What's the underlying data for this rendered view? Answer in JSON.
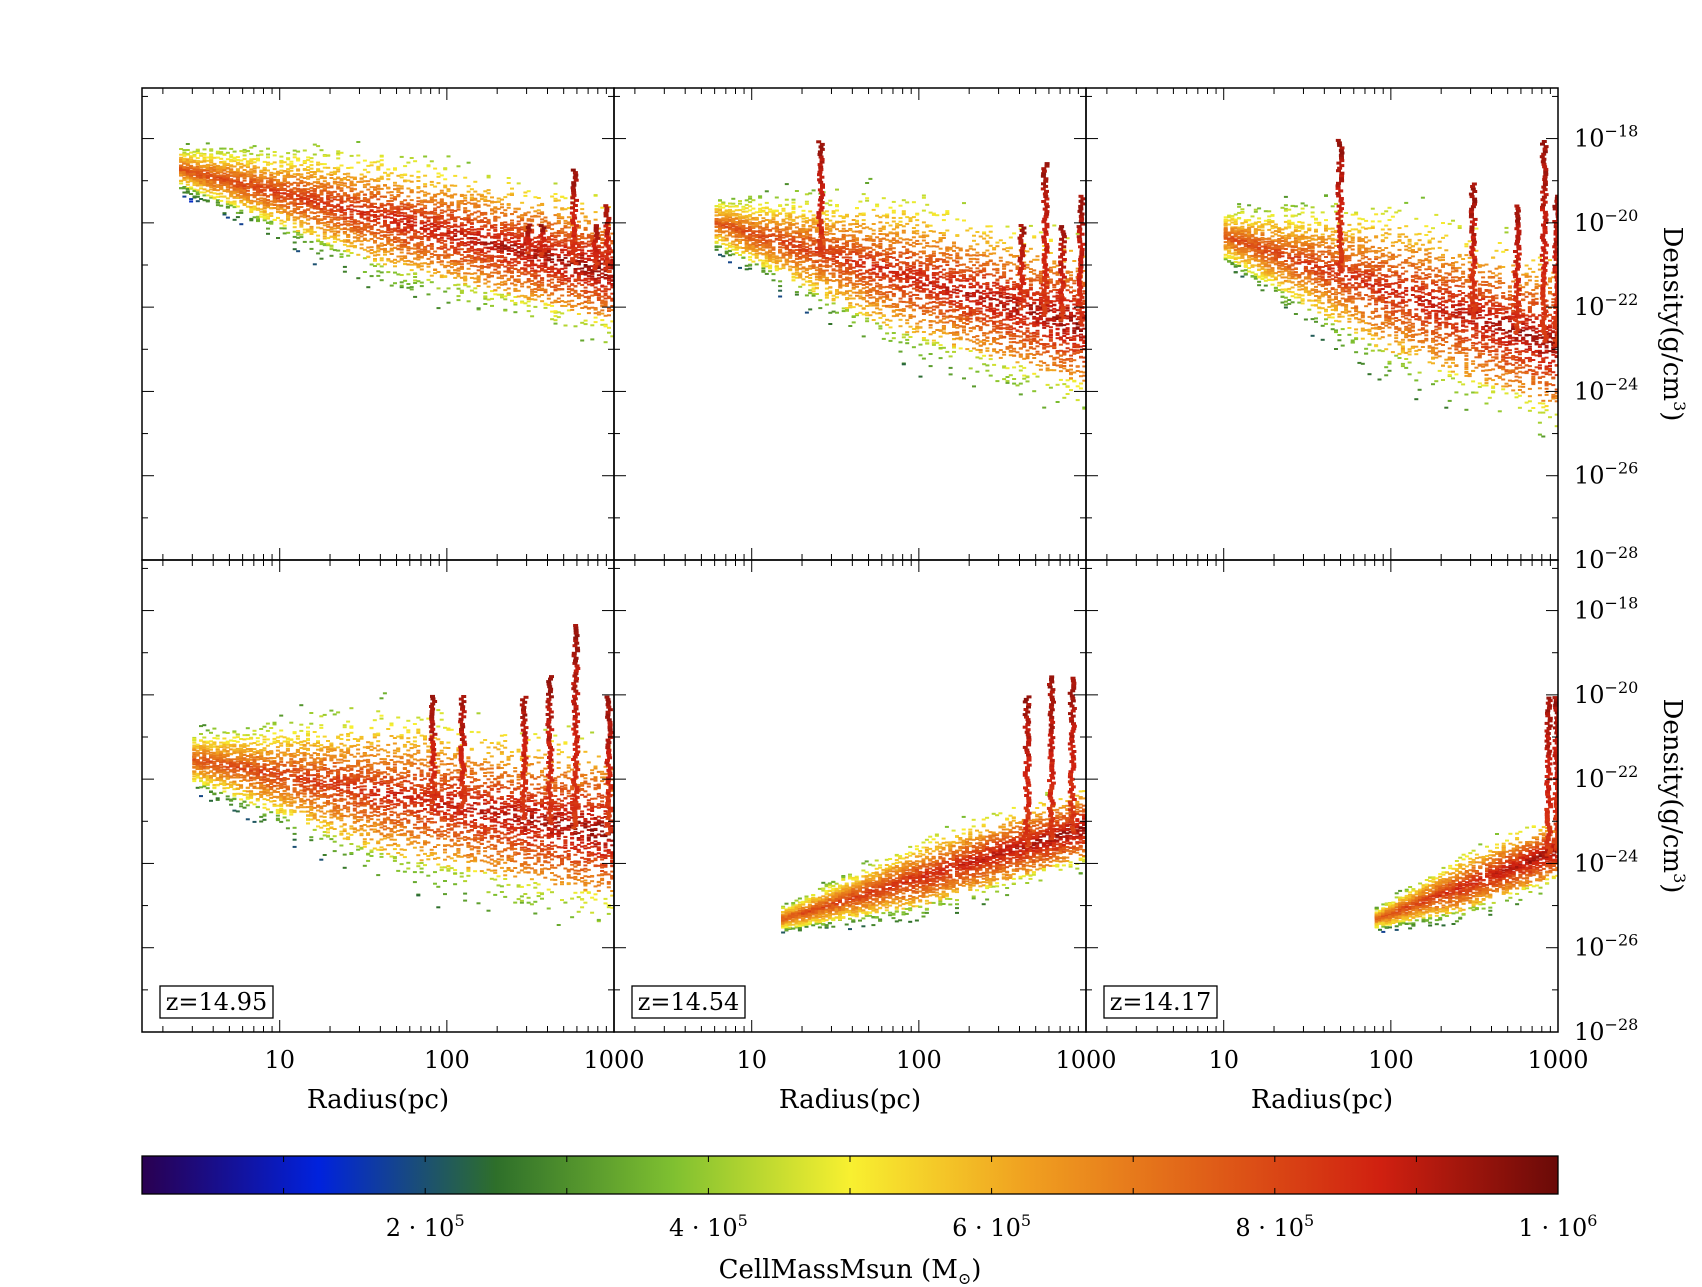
{
  "chart_data": {
    "type": "heatmap",
    "description_type": "phase plot (2D histogram) of gas density versus radius, colored by cell mass",
    "panels": [
      {
        "row": 0,
        "col": 0,
        "label": "",
        "blob": {
          "r0": 2.5,
          "d0": 2e-19,
          "slope": -0.95,
          "spread": 2.0,
          "rmax": 1000
        },
        "spikes": [
          {
            "r": 300,
            "top": 1e-20
          },
          {
            "r": 360,
            "top": 1e-20
          },
          {
            "r": 560,
            "top": 2e-19
          },
          {
            "r": 750,
            "top": 1e-20
          },
          {
            "r": 880,
            "top": 3e-20
          }
        ]
      },
      {
        "row": 0,
        "col": 1,
        "label": "",
        "blob": {
          "r0": 6.0,
          "d0": 1e-20,
          "slope": -1.1,
          "spread": 2.4,
          "rmax": 1000
        },
        "spikes": [
          {
            "r": 25,
            "top": 1e-18
          },
          {
            "r": 400,
            "top": 1e-20
          },
          {
            "r": 550,
            "top": 3e-19
          },
          {
            "r": 700,
            "top": 1e-20
          },
          {
            "r": 900,
            "top": 5e-20
          }
        ]
      },
      {
        "row": 0,
        "col": 2,
        "label": "",
        "blob": {
          "r0": 10,
          "d0": 5e-21,
          "slope": -1.3,
          "spread": 2.6,
          "rmax": 1000
        },
        "spikes": [
          {
            "r": 48,
            "top": 1e-18
          },
          {
            "r": 300,
            "top": 1e-19
          },
          {
            "r": 550,
            "top": 3e-20
          },
          {
            "r": 800,
            "top": 1e-18
          },
          {
            "r": 950,
            "top": 5e-20
          }
        ]
      },
      {
        "row": 1,
        "col": 0,
        "label": "z=14.95",
        "blob": {
          "r0": 3.0,
          "d0": 3e-22,
          "slope": -0.7,
          "spread": 2.6,
          "rmax": 1000
        },
        "spikes": [
          {
            "r": 80,
            "top": 1e-20
          },
          {
            "r": 120,
            "top": 1e-20
          },
          {
            "r": 280,
            "top": 1e-20
          },
          {
            "r": 400,
            "top": 3e-20
          },
          {
            "r": 570,
            "top": 5e-19
          },
          {
            "r": 900,
            "top": 1e-20
          }
        ]
      },
      {
        "row": 1,
        "col": 1,
        "label": "z=14.54",
        "blob": {
          "r0": 15,
          "d0": 5e-26,
          "slope": 1.2,
          "spread": 1.2,
          "rmax": 1000
        },
        "spikes": [
          {
            "r": 430,
            "top": 1e-20
          },
          {
            "r": 600,
            "top": 3e-20
          },
          {
            "r": 800,
            "top": 3e-20
          }
        ]
      },
      {
        "row": 1,
        "col": 2,
        "label": "z=14.17",
        "blob": {
          "r0": 80,
          "d0": 5e-26,
          "slope": 1.5,
          "spread": 1.0,
          "rmax": 1000
        },
        "spikes": [
          {
            "r": 850,
            "top": 1e-20
          },
          {
            "r": 950,
            "top": 1e-20
          }
        ]
      }
    ],
    "xaxis": {
      "label": "Radius(pc)",
      "scale": "log",
      "range": [
        1.5,
        1000
      ],
      "ticks": [
        10,
        100,
        1000
      ],
      "tick_labels": [
        "10",
        "100",
        "1000"
      ]
    },
    "yaxis": {
      "label": "Density(g/cm",
      "label_sup": "3",
      "label_close": ")",
      "scale": "log",
      "range_exp": [
        -28,
        -16.8
      ],
      "ticks_exp": [
        -18,
        -20,
        -22,
        -24,
        -26,
        -28
      ],
      "tick_base": "10",
      "tick_sups": [
        "−18",
        "−20",
        "−22",
        "−24",
        "−26",
        "−28"
      ]
    },
    "colorbar": {
      "label": "CellMassMsun (M",
      "label_sub": "⊙",
      "label_close": ")",
      "range": [
        0,
        1000000
      ],
      "ticks": [
        200000,
        400000,
        600000,
        800000,
        1000000
      ],
      "tick_labels": [
        {
          "m": "2 · 10",
          "e": "5"
        },
        {
          "m": "4 · 10",
          "e": "5"
        },
        {
          "m": "6 · 10",
          "e": "5"
        },
        {
          "m": "8 · 10",
          "e": "5"
        },
        {
          "m": "1 · 10",
          "e": "6"
        }
      ],
      "colormap": [
        "#2a0050",
        "#0022dd",
        "#2e6f2a",
        "#7fc030",
        "#f8f030",
        "#f0a020",
        "#e06018",
        "#d02010",
        "#6a0a08"
      ]
    }
  }
}
